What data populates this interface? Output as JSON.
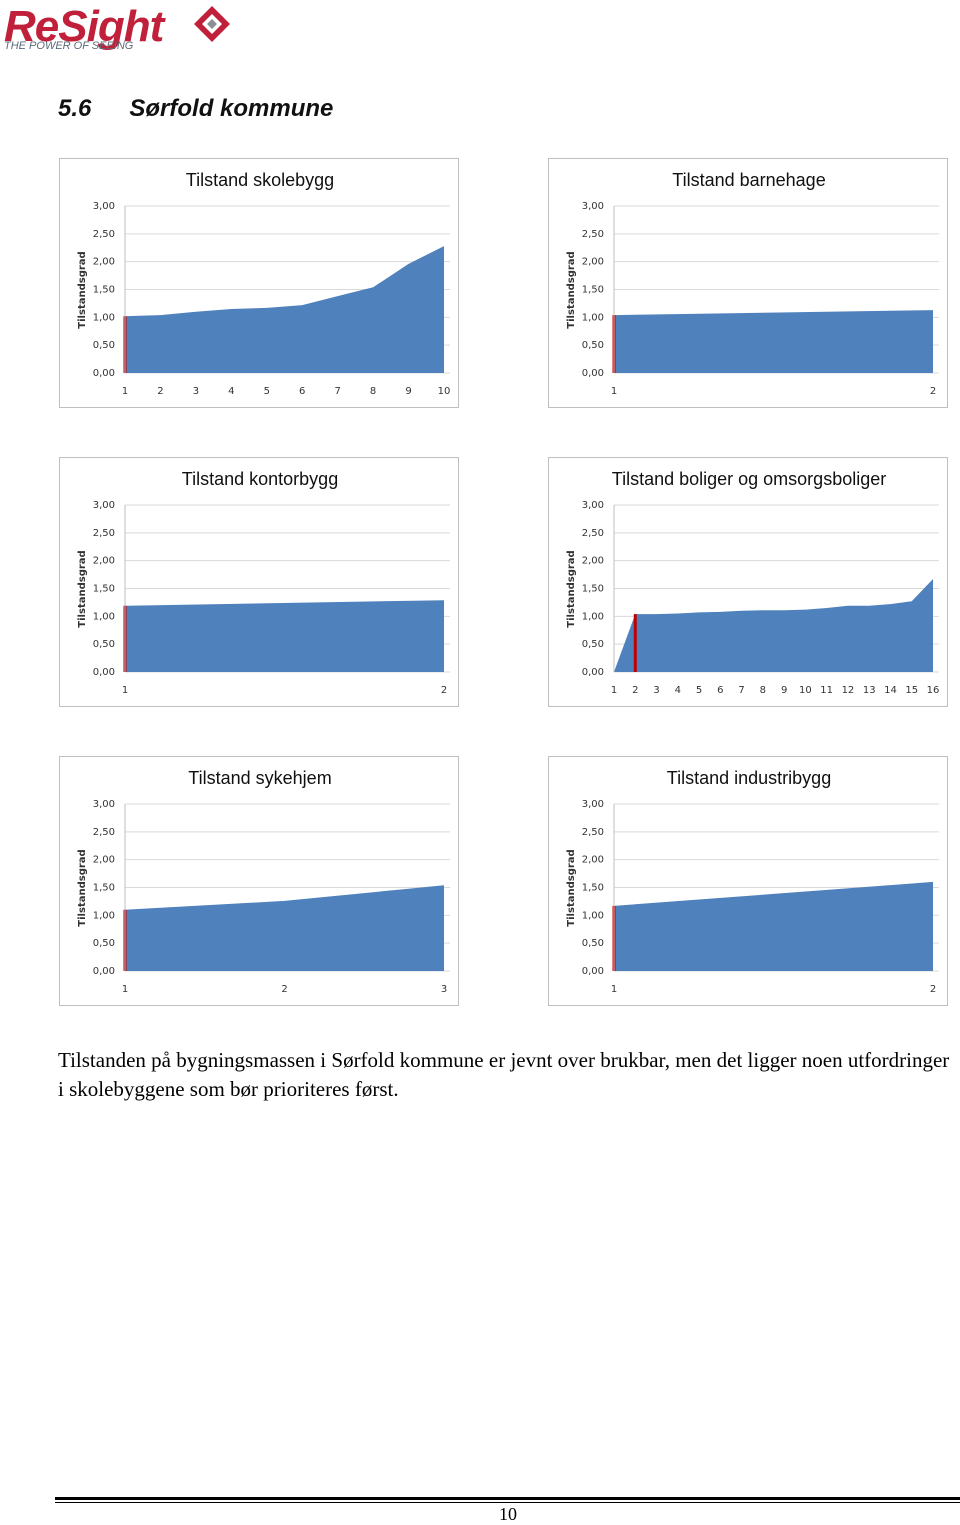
{
  "header": {
    "logo": "ReSight",
    "tagline": "THE POWER OF SEEING"
  },
  "section": {
    "number": "5.6",
    "title": "Sørfold kommune"
  },
  "chart_data": [
    {
      "type": "area",
      "title": "Tilstand skolebygg",
      "ylabel": "Tilstandsgrad",
      "categories": [
        "1",
        "2",
        "3",
        "4",
        "5",
        "6",
        "7",
        "8",
        "9",
        "10"
      ],
      "values": [
        1.02,
        1.04,
        1.1,
        1.15,
        1.17,
        1.22,
        1.38,
        1.54,
        1.96,
        2.28
      ],
      "color": "#4f81bd",
      "marker_color": "#c00000",
      "ylim": [
        0,
        3
      ],
      "yticks": [
        {
          "value": 0,
          "label": "0,00"
        },
        {
          "value": 0.5,
          "label": "0,50"
        },
        {
          "value": 1,
          "label": "1,00"
        },
        {
          "value": 1.5,
          "label": "1,50"
        },
        {
          "value": 2,
          "label": "2,00"
        },
        {
          "value": 2.5,
          "label": "2,50"
        },
        {
          "value": 3,
          "label": "3,00"
        }
      ],
      "grid": true
    },
    {
      "type": "area",
      "title": "Tilstand barnehage",
      "ylabel": "Tilstandsgrad",
      "categories": [
        "1",
        "2"
      ],
      "values": [
        1.04,
        1.13
      ],
      "color": "#4f81bd",
      "marker_color": "#c00000",
      "ylim": [
        0,
        3
      ],
      "yticks": [
        {
          "value": 0,
          "label": "0,00"
        },
        {
          "value": 0.5,
          "label": "0,50"
        },
        {
          "value": 1,
          "label": "1,00"
        },
        {
          "value": 1.5,
          "label": "1,50"
        },
        {
          "value": 2,
          "label": "2,00"
        },
        {
          "value": 2.5,
          "label": "2,50"
        },
        {
          "value": 3,
          "label": "3,00"
        }
      ],
      "grid": true
    },
    {
      "type": "area",
      "title": "Tilstand kontorbygg",
      "ylabel": "Tilstandsgrad",
      "categories": [
        "1",
        "2"
      ],
      "values": [
        1.19,
        1.29
      ],
      "color": "#4f81bd",
      "marker_color": "#c00000",
      "ylim": [
        0,
        3
      ],
      "yticks": [
        {
          "value": 0,
          "label": "0,00"
        },
        {
          "value": 0.5,
          "label": "0,50"
        },
        {
          "value": 1,
          "label": "1,00"
        },
        {
          "value": 1.5,
          "label": "1,50"
        },
        {
          "value": 2,
          "label": "2,00"
        },
        {
          "value": 2.5,
          "label": "2,50"
        },
        {
          "value": 3,
          "label": "3,00"
        }
      ],
      "grid": true
    },
    {
      "type": "area",
      "title": "Tilstand boliger og omsorgsboliger",
      "ylabel": "Tilstandsgrad",
      "categories": [
        "1",
        "2",
        "3",
        "4",
        "5",
        "6",
        "7",
        "8",
        "9",
        "10",
        "11",
        "12",
        "13",
        "14",
        "15",
        "16"
      ],
      "values": [
        0,
        1.04,
        1.04,
        1.05,
        1.07,
        1.08,
        1.1,
        1.11,
        1.11,
        1.12,
        1.15,
        1.19,
        1.19,
        1.22,
        1.27,
        1.67
      ],
      "color": "#4f81bd",
      "marker_color": "#c00000",
      "ylim": [
        0,
        3
      ],
      "yticks": [
        {
          "value": 0,
          "label": "0,00"
        },
        {
          "value": 0.5,
          "label": "0,50"
        },
        {
          "value": 1,
          "label": "1,00"
        },
        {
          "value": 1.5,
          "label": "1,50"
        },
        {
          "value": 2,
          "label": "2,00"
        },
        {
          "value": 2.5,
          "label": "2,50"
        },
        {
          "value": 3,
          "label": "3,00"
        }
      ],
      "grid": true
    },
    {
      "type": "area",
      "title": "Tilstand sykehjem",
      "ylabel": "Tilstandsgrad",
      "categories": [
        "1",
        "2",
        "3"
      ],
      "values": [
        1.1,
        1.26,
        1.54
      ],
      "color": "#4f81bd",
      "marker_color": "#c00000",
      "ylim": [
        0,
        3
      ],
      "yticks": [
        {
          "value": 0,
          "label": "0,00"
        },
        {
          "value": 0.5,
          "label": "0,50"
        },
        {
          "value": 1,
          "label": "1,00"
        },
        {
          "value": 1.5,
          "label": "1,50"
        },
        {
          "value": 2,
          "label": "2,00"
        },
        {
          "value": 2.5,
          "label": "2,50"
        },
        {
          "value": 3,
          "label": "3,00"
        }
      ],
      "grid": true
    },
    {
      "type": "area",
      "title": "Tilstand industribygg",
      "ylabel": "Tilstandsgrad",
      "categories": [
        "1",
        "2"
      ],
      "values": [
        1.17,
        1.6
      ],
      "color": "#4f81bd",
      "marker_color": "#c00000",
      "ylim": [
        0,
        3
      ],
      "yticks": [
        {
          "value": 0,
          "label": "0,00"
        },
        {
          "value": 0.5,
          "label": "0,50"
        },
        {
          "value": 1,
          "label": "1,00"
        },
        {
          "value": 1.5,
          "label": "1,50"
        },
        {
          "value": 2,
          "label": "2,00"
        },
        {
          "value": 2.5,
          "label": "2,50"
        },
        {
          "value": 3,
          "label": "3,00"
        }
      ],
      "grid": true
    }
  ],
  "paragraph": "Tilstanden på bygningsmassen i Sørfold kommune er jevnt over brukbar, men det ligger noen utfordringer i skolebyggene som bør prioriteres først.",
  "footer": {
    "page": "10"
  }
}
